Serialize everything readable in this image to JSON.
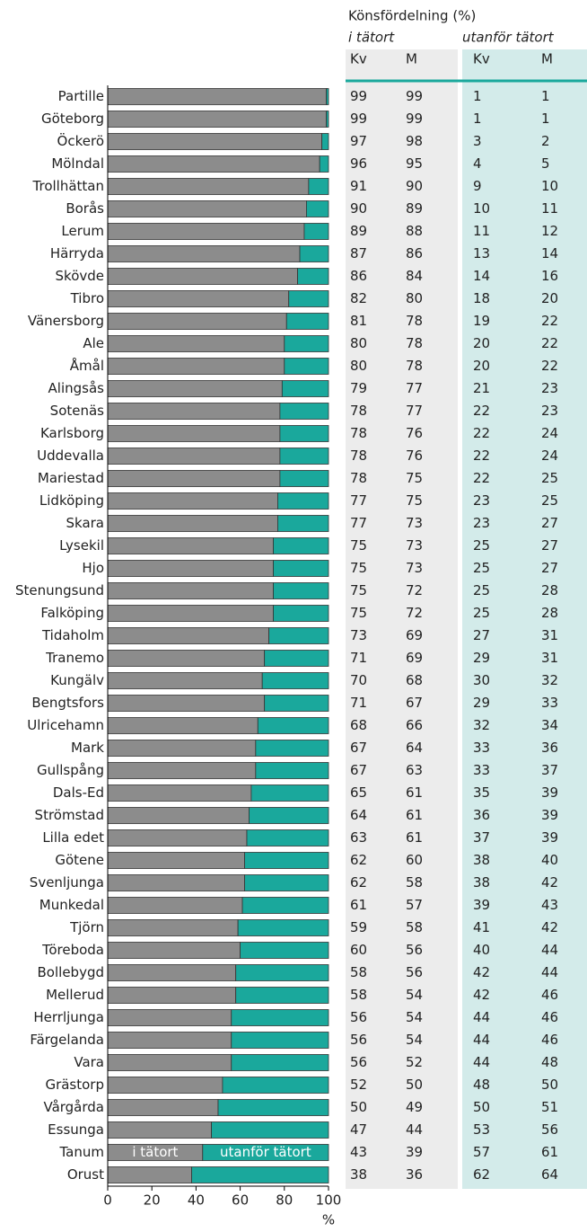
{
  "chart_data": {
    "type": "stacked-bar-horizontal",
    "categories": [
      "Partille",
      "Göteborg",
      "Öckerö",
      "Mölndal",
      "Trollhättan",
      "Borås",
      "Lerum",
      "Härryda",
      "Skövde",
      "Tibro",
      "Vänersborg",
      "Ale",
      "Åmål",
      "Alingsås",
      "Sotenäs",
      "Karlsborg",
      "Uddevalla",
      "Mariestad",
      "Lidköping",
      "Skara",
      "Lysekil",
      "Hjo",
      "Stenungsund",
      "Falköping",
      "Tidaholm",
      "Tranemo",
      "Kungälv",
      "Bengtsfors",
      "Ulricehamn",
      "Mark",
      "Gullspång",
      "Dals-Ed",
      "Strömstad",
      "Lilla edet",
      "Götene",
      "Svenljunga",
      "Munkedal",
      "Tjörn",
      "Töreboda",
      "Bollebygd",
      "Mellerud",
      "Herrljunga",
      "Färgelanda",
      "Vara",
      "Grästorp",
      "Vårgårda",
      "Essunga",
      "Tanum",
      "Orust"
    ],
    "series": [
      {
        "name": "i tätort",
        "color": "#8c8c8c",
        "values": [
          99,
          99,
          97,
          96,
          91,
          90,
          89,
          87,
          86,
          82,
          81,
          80,
          80,
          79,
          78,
          78,
          78,
          78,
          77,
          77,
          75,
          75,
          75,
          75,
          73,
          71,
          70,
          71,
          68,
          67,
          67,
          65,
          64,
          63,
          62,
          62,
          61,
          59,
          60,
          58,
          58,
          56,
          56,
          56,
          52,
          50,
          47,
          43,
          38
        ]
      },
      {
        "name": "utanför tätort",
        "color": "#1aa89c",
        "values": [
          1,
          1,
          3,
          4,
          9,
          10,
          11,
          13,
          14,
          18,
          19,
          20,
          20,
          21,
          22,
          22,
          22,
          22,
          23,
          23,
          25,
          25,
          25,
          25,
          27,
          29,
          30,
          29,
          32,
          33,
          33,
          35,
          36,
          37,
          38,
          38,
          39,
          41,
          40,
          42,
          42,
          44,
          44,
          44,
          48,
          50,
          53,
          57,
          62
        ]
      }
    ],
    "xlim": [
      0,
      100
    ],
    "xticks": [
      0,
      20,
      40,
      60,
      80,
      100
    ],
    "x_label": "%",
    "table": {
      "title": "Könsfördelning  (%)",
      "groups": [
        "i tätort",
        "utanför tätort"
      ],
      "columns": [
        "Kv",
        "M",
        "Kv",
        "M"
      ],
      "m_i_tatort": [
        99,
        99,
        98,
        95,
        90,
        89,
        88,
        86,
        84,
        80,
        78,
        78,
        78,
        77,
        77,
        76,
        76,
        75,
        75,
        73,
        73,
        73,
        72,
        72,
        69,
        69,
        68,
        67,
        66,
        64,
        63,
        61,
        61,
        61,
        60,
        58,
        57,
        58,
        56,
        56,
        54,
        54,
        54,
        52,
        50,
        49,
        44,
        39,
        36
      ],
      "m_utanfor_tatort": [
        1,
        1,
        2,
        5,
        10,
        11,
        12,
        14,
        16,
        20,
        22,
        22,
        22,
        23,
        23,
        24,
        24,
        25,
        25,
        27,
        27,
        27,
        28,
        28,
        31,
        31,
        32,
        33,
        34,
        36,
        37,
        39,
        39,
        39,
        40,
        42,
        43,
        42,
        44,
        44,
        46,
        46,
        46,
        48,
        50,
        51,
        56,
        61,
        64
      ]
    }
  }
}
